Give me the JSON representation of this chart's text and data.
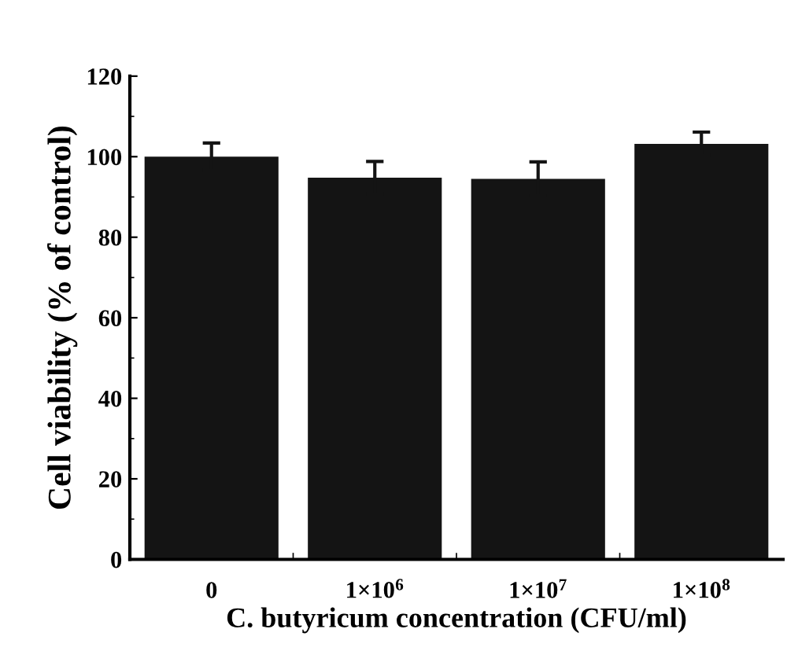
{
  "chart_data": {
    "type": "bar",
    "xlabel": "C. butyricum concentration (CFU/ml)",
    "ylabel": "Cell viability (% of control)",
    "categories": [
      "0",
      "1×10$^{6}$",
      "1×10$^{7}$",
      "1×10$^{8}$"
    ],
    "values": [
      100,
      94.8,
      94.5,
      103.2
    ],
    "errors": [
      3.4,
      4.0,
      4.2,
      2.9
    ],
    "color": "#141414",
    "ylim": [
      0,
      120
    ],
    "yticks": [
      0,
      20,
      40,
      60,
      80,
      100,
      120
    ],
    "grid": false
  }
}
